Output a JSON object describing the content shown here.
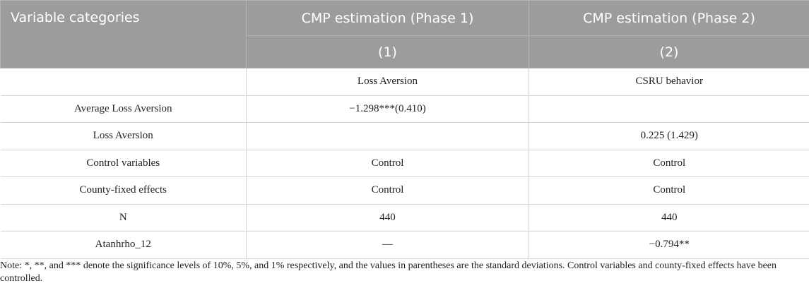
{
  "header": {
    "col1": "Variable categories",
    "col2": "CMP estimation (Phase 1)",
    "col3": "CMP estimation (Phase 2)",
    "sub2": "(1)",
    "sub3": "(2)"
  },
  "rows": [
    [
      "",
      "Loss Aversion",
      "CSRU behavior"
    ],
    [
      "Average Loss Aversion",
      "−1.298***(0.410)",
      ""
    ],
    [
      "Loss Aversion",
      "",
      "0.225 (1.429)"
    ],
    [
      "Control variables",
      "Control",
      "Control"
    ],
    [
      "County-fixed effects",
      "Control",
      "Control"
    ],
    [
      "N",
      "440",
      "440"
    ],
    [
      "Atanhrho_12",
      "—",
      "−0.794**"
    ]
  ],
  "note": "Note: *, **, and *** denote the significance levels of 10%, 5%, and 1% respectively, and the values in parentheses are the standard deviations. Control variables and county-fixed effects have been controlled."
}
